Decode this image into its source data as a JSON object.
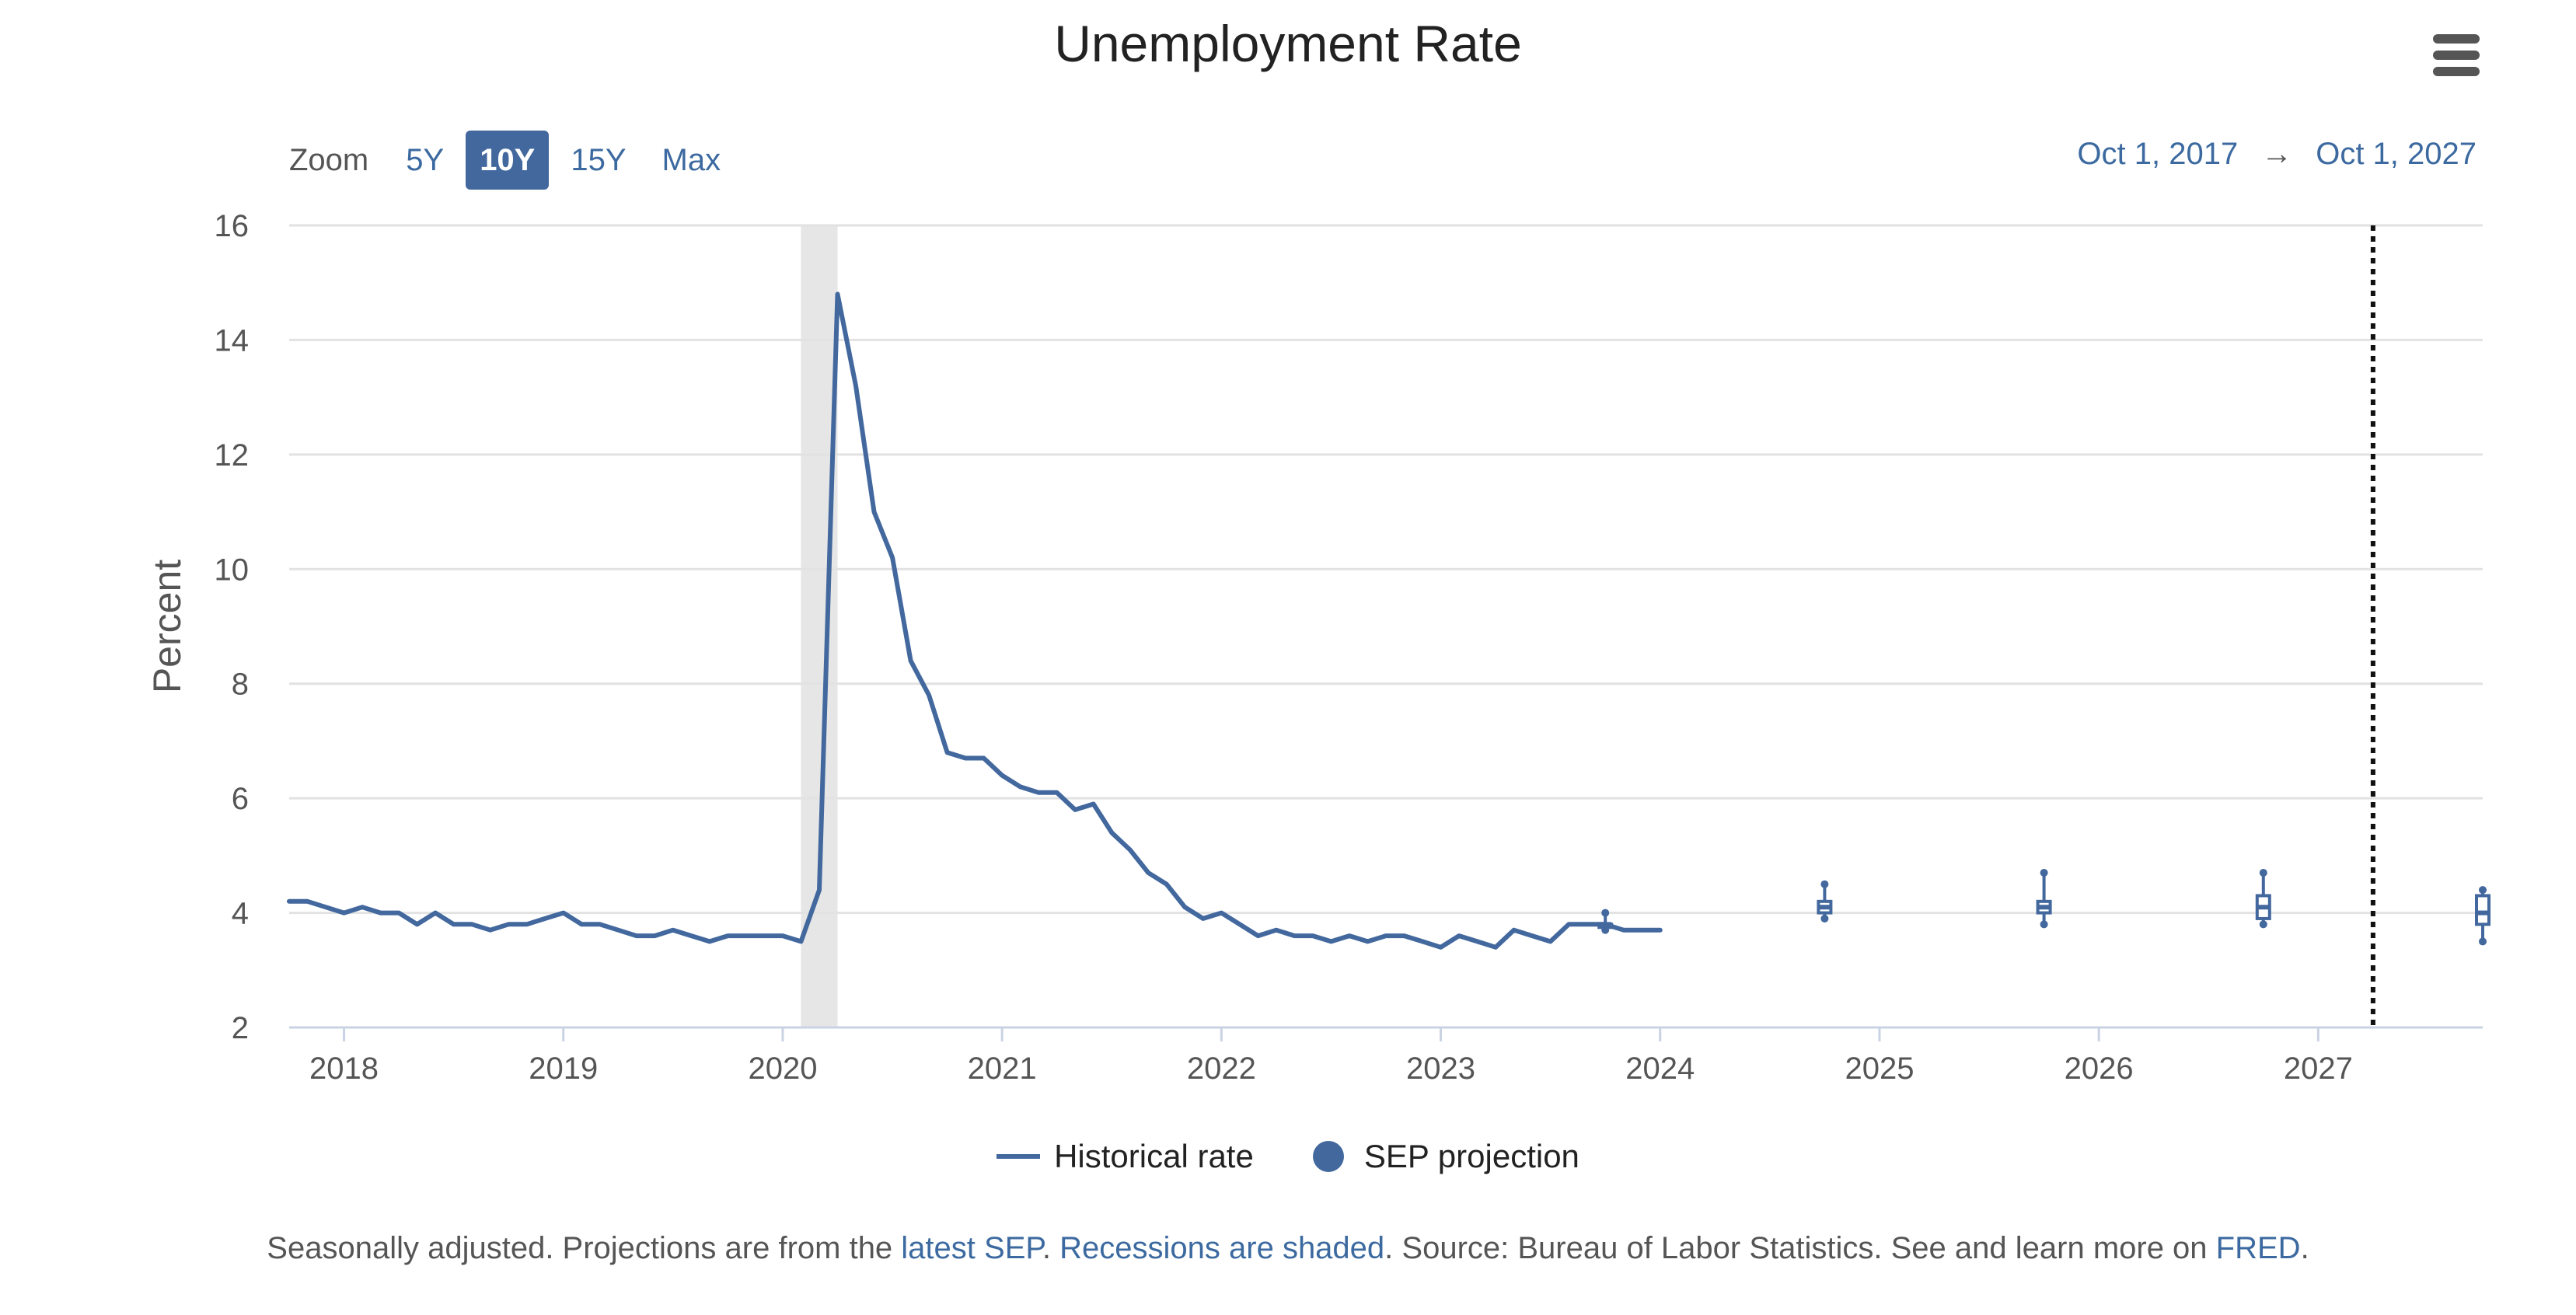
{
  "header": {
    "title": "Unemployment Rate"
  },
  "zoom": {
    "label": "Zoom",
    "options": [
      "5Y",
      "10Y",
      "15Y",
      "Max"
    ],
    "selected": "10Y"
  },
  "range": {
    "from": "Oct 1, 2017",
    "arrow": "→",
    "to": "Oct 1, 2027"
  },
  "colors": {
    "series": "#42689e",
    "recession": "#e6e6e6",
    "grid": "#e2e2e2"
  },
  "chart_data": {
    "type": "line",
    "title": "Unemployment Rate",
    "ylabel": "Percent",
    "xlabel": "",
    "ylim": [
      2,
      16
    ],
    "yticks": [
      2,
      4,
      6,
      8,
      10,
      12,
      14,
      16
    ],
    "xlim": [
      2017.75,
      2027.75
    ],
    "xticks": [
      "2018",
      "2019",
      "2020",
      "2021",
      "2022",
      "2023",
      "2024",
      "2025",
      "2026",
      "2027"
    ],
    "recessions": [
      {
        "start": 2020.083,
        "end": 2020.25
      }
    ],
    "vline": {
      "x": 2027.25,
      "style": "dotted"
    },
    "series": [
      {
        "name": "Historical rate",
        "start": 2017.75,
        "step_months": 1,
        "values": [
          4.2,
          4.2,
          4.1,
          4.0,
          4.1,
          4.0,
          4.0,
          3.8,
          4.0,
          3.8,
          3.8,
          3.7,
          3.8,
          3.8,
          3.9,
          4.0,
          3.8,
          3.8,
          3.7,
          3.6,
          3.6,
          3.7,
          3.6,
          3.5,
          3.6,
          3.6,
          3.6,
          3.6,
          3.5,
          4.4,
          14.8,
          13.2,
          11.0,
          10.2,
          8.4,
          7.8,
          6.8,
          6.7,
          6.7,
          6.4,
          6.2,
          6.1,
          6.1,
          5.8,
          5.9,
          5.4,
          5.1,
          4.7,
          4.5,
          4.1,
          3.9,
          4.0,
          3.8,
          3.6,
          3.7,
          3.6,
          3.6,
          3.5,
          3.6,
          3.5,
          3.6,
          3.6,
          3.5,
          3.4,
          3.6,
          3.5,
          3.4,
          3.7,
          3.6,
          3.5,
          3.8,
          3.8,
          3.8,
          3.7,
          3.7,
          3.7
        ]
      },
      {
        "name": "SEP projection",
        "type": "boxplot",
        "points": [
          {
            "x": 2023.75,
            "low": 3.7,
            "q1": 3.8,
            "median": 3.8,
            "q3": 3.8,
            "high": 4.0
          },
          {
            "x": 2024.75,
            "low": 3.9,
            "q1": 4.0,
            "median": 4.1,
            "q3": 4.2,
            "high": 4.5
          },
          {
            "x": 2025.75,
            "low": 3.8,
            "q1": 4.0,
            "median": 4.1,
            "q3": 4.2,
            "high": 4.7
          },
          {
            "x": 2026.75,
            "low": 3.8,
            "q1": 3.9,
            "median": 4.1,
            "q3": 4.3,
            "high": 4.7
          },
          {
            "x": 2027.75,
            "low": 3.5,
            "q1": 3.8,
            "median": 4.0,
            "q3": 4.3,
            "high": 4.4
          }
        ]
      }
    ]
  },
  "legend": {
    "items": [
      "Historical rate",
      "SEP projection"
    ]
  },
  "footnote": {
    "text_1": "Seasonally adjusted. Projections are from the ",
    "link_1": "latest SEP",
    "text_2": ". ",
    "link_2": "Recessions are shaded",
    "text_3": ". Source: Bureau of Labor Statistics. See and learn more on ",
    "link_3": "FRED",
    "text_4": "."
  }
}
